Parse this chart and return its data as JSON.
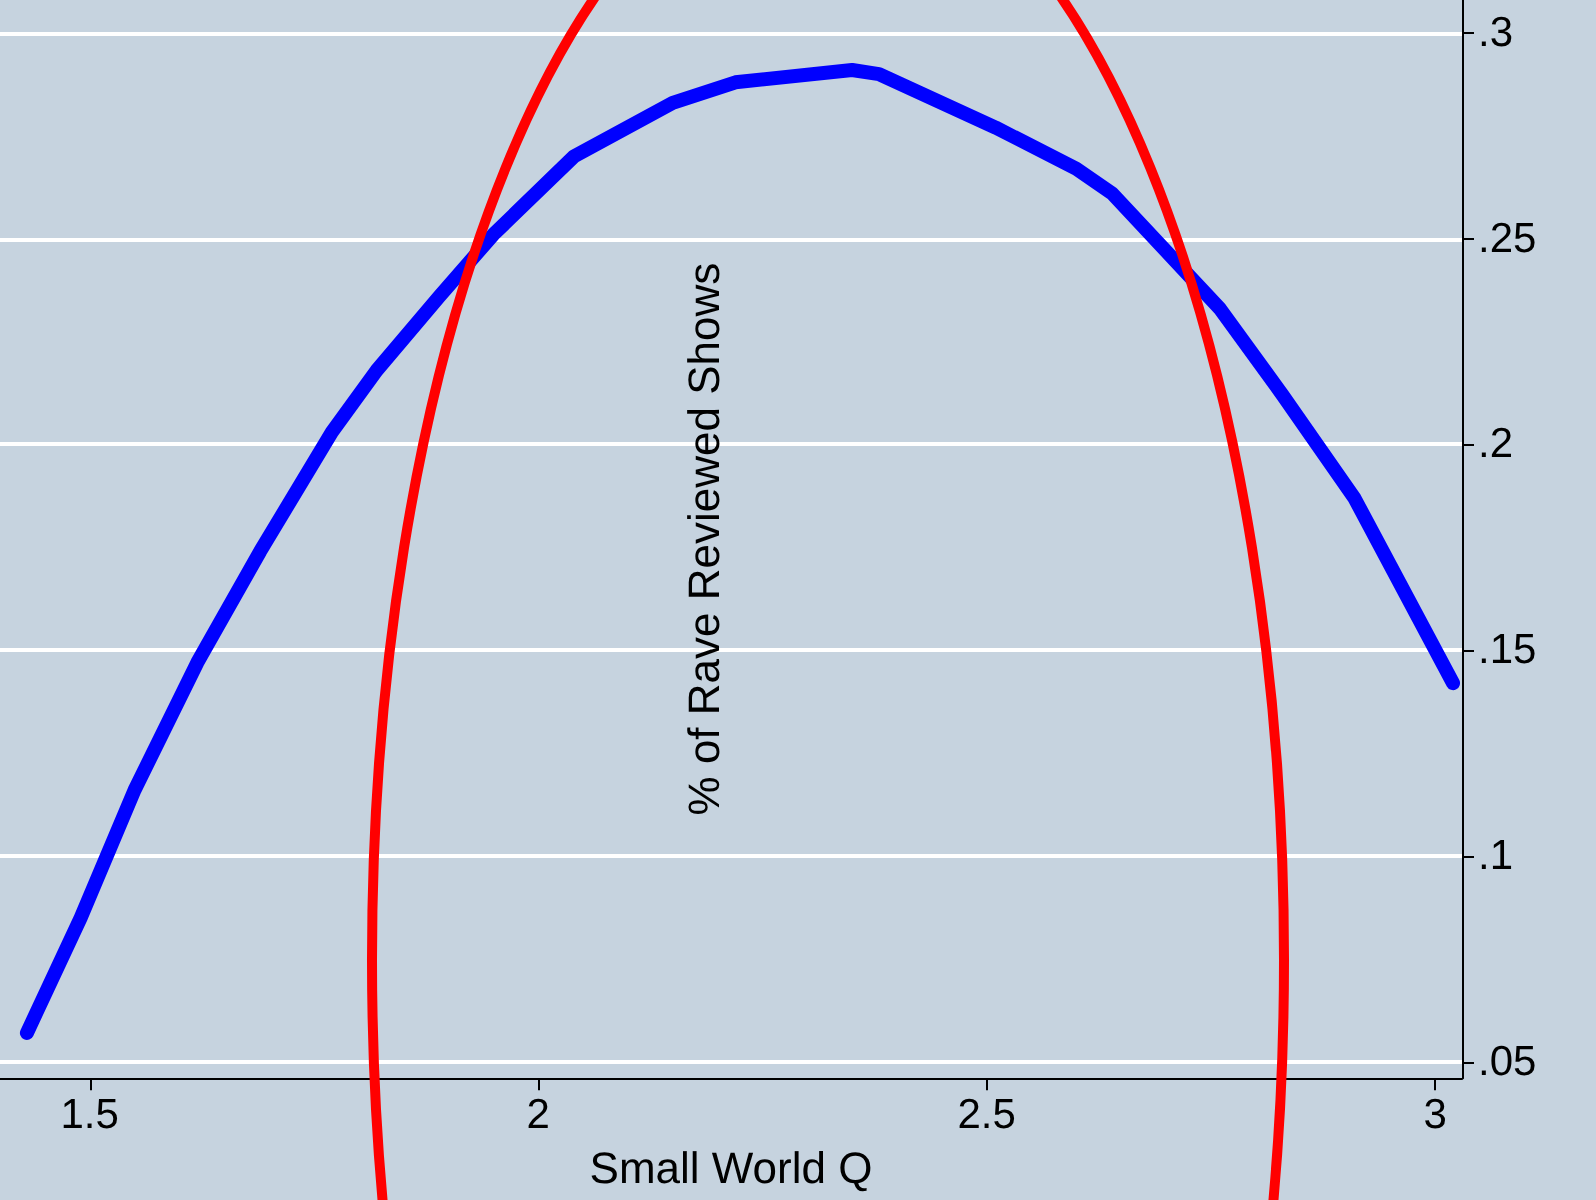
{
  "chart_data": {
    "type": "line",
    "xlabel": "Small World Q",
    "ylabel": "% of Rave Reviewed Shows",
    "x": [
      1.43,
      1.49,
      1.55,
      1.62,
      1.69,
      1.77,
      1.82,
      1.89,
      1.95,
      2.04,
      2.15,
      2.22,
      2.35,
      2.38,
      2.51,
      2.6,
      2.64,
      2.76,
      2.83,
      2.91,
      3.02
    ],
    "series": [
      {
        "color": "#0000ff",
        "values": [
          0.057,
          0.085,
          0.116,
          0.147,
          0.174,
          0.203,
          0.218,
          0.236,
          0.251,
          0.27,
          0.283,
          0.288,
          0.291,
          0.29,
          0.277,
          0.267,
          0.261,
          0.233,
          0.212,
          0.187,
          0.142
        ]
      }
    ],
    "xlim": [
      1.4,
      3.03
    ],
    "xticks": [
      {
        "value": 1.5,
        "label": "1.5"
      },
      {
        "value": 2,
        "label": "2"
      },
      {
        "value": 2.5,
        "label": "2.5"
      },
      {
        "value": 3,
        "label": "3"
      }
    ],
    "ylim": [
      0.046,
      0.308
    ],
    "yticks": [
      {
        "value": 0.05,
        "label": ".05"
      },
      {
        "value": 0.1,
        "label": ".1"
      },
      {
        "value": 0.15,
        "label": ".15"
      },
      {
        "value": 0.2,
        "label": ".2"
      },
      {
        "value": 0.25,
        "label": ".25"
      },
      {
        "value": 0.3,
        "label": ".3"
      }
    ],
    "grid": "y",
    "line_style": "solid"
  }
}
